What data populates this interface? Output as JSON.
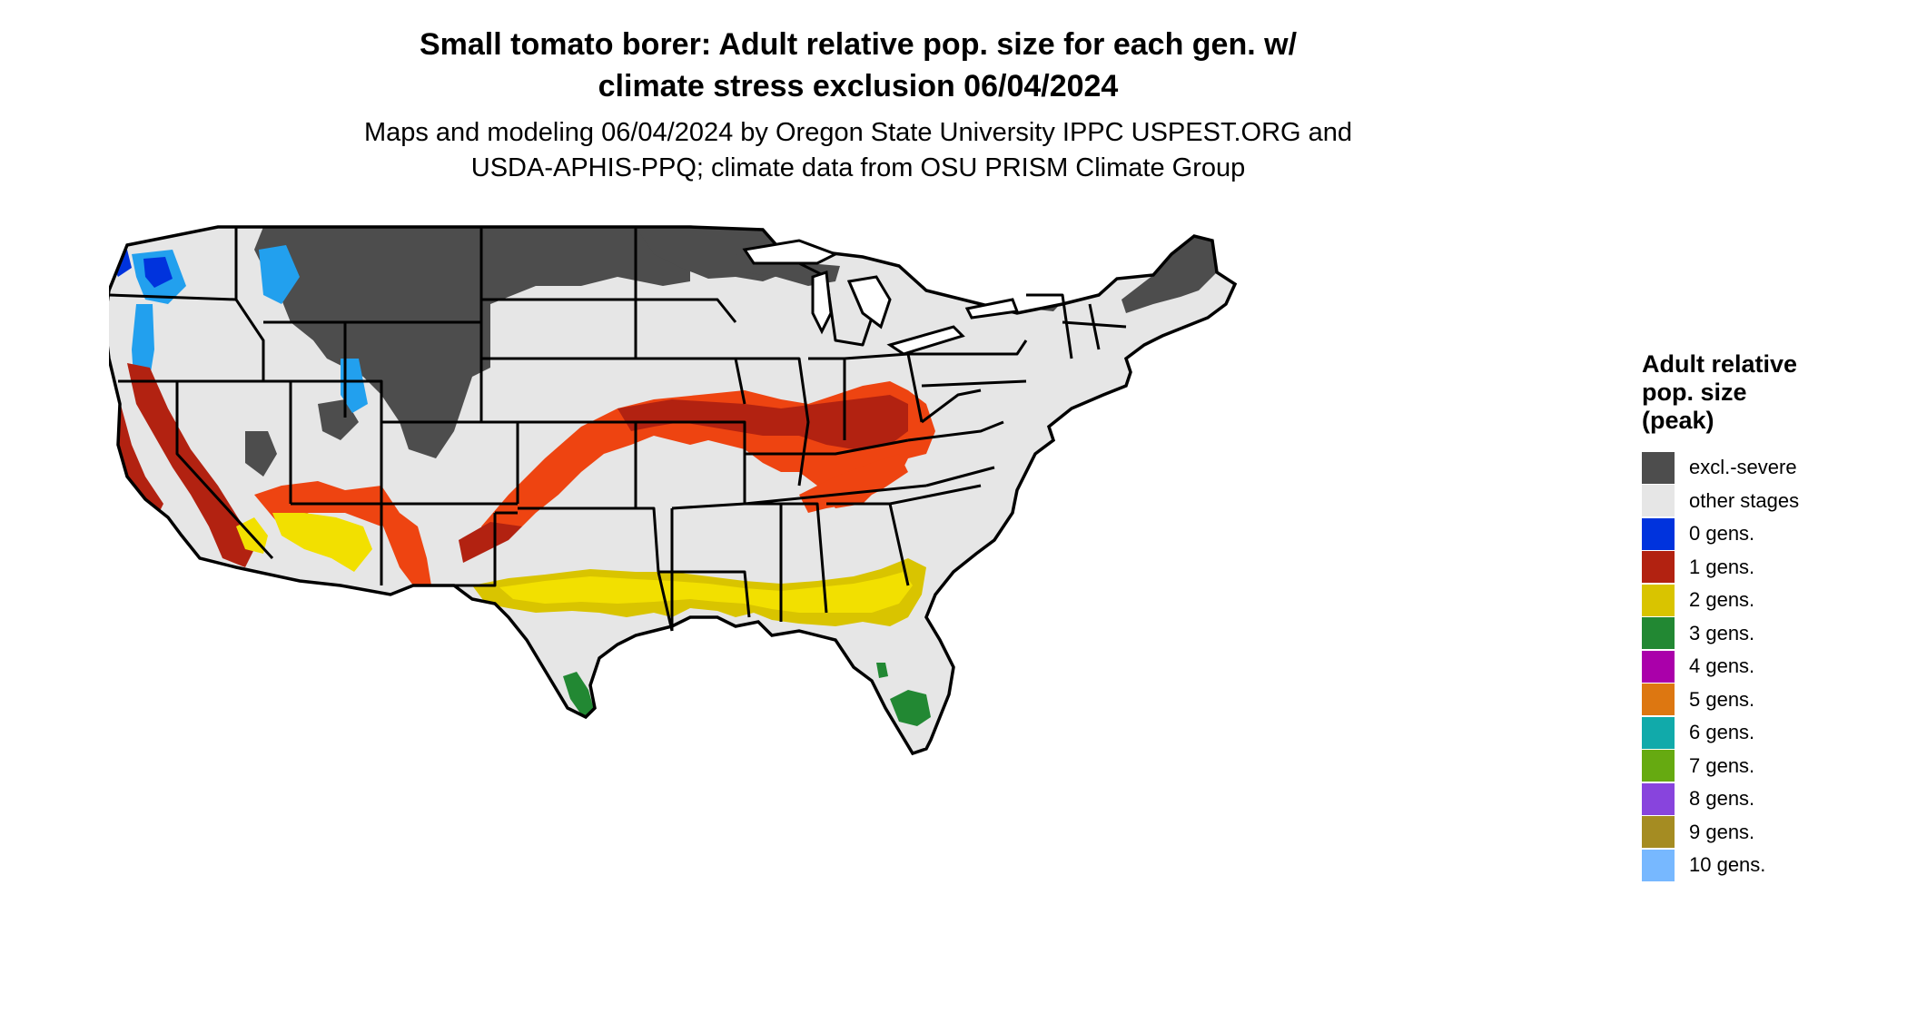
{
  "title": {
    "line1": "Small tomato borer: Adult relative pop. size for each gen. w/",
    "line2": "climate stress exclusion 06/04/2024"
  },
  "subtitle": {
    "line1": "Maps and modeling 06/04/2024 by Oregon State University IPPC USPEST.ORG and",
    "line2": "USDA-APHIS-PPQ; climate data from OSU PRISM Climate Group"
  },
  "legend": {
    "title_lines": [
      "Adult relative",
      "pop. size",
      "(peak)"
    ],
    "items": [
      {
        "label": "excl.-severe",
        "color": "#4d4d4d"
      },
      {
        "label": "other stages",
        "color": "#e6e6e6"
      },
      {
        "label": "0 gens.",
        "color": "#0033dd"
      },
      {
        "label": "1 gens.",
        "color": "#b22211"
      },
      {
        "label": "2 gens.",
        "color": "#d9c400"
      },
      {
        "label": "3 gens.",
        "color": "#228833"
      },
      {
        "label": "4 gens.",
        "color": "#aa00aa"
      },
      {
        "label": "5 gens.",
        "color": "#dd7711"
      },
      {
        "label": "6 gens.",
        "color": "#11aaaa"
      },
      {
        "label": "7 gens.",
        "color": "#66aa11"
      },
      {
        "label": "8 gens.",
        "color": "#8844dd"
      },
      {
        "label": "9 gens.",
        "color": "#a58c22"
      },
      {
        "label": "10 gens.",
        "color": "#77b8ff"
      }
    ]
  },
  "map_colors": {
    "land": "#e6e6e6",
    "excluded": "#4d4d4d",
    "gen0": "#0033dd",
    "gen0_light": "#22a0ee",
    "gen1": "#b22211",
    "gen1_bright": "#ee4411",
    "gen2": "#d9c400",
    "gen2_bright": "#f2e000",
    "gen3": "#228833",
    "border": "#000000"
  }
}
